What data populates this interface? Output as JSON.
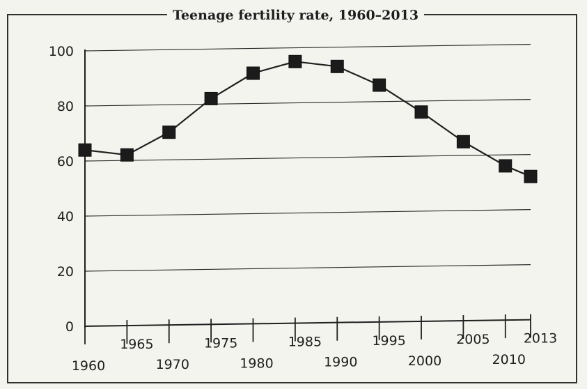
{
  "chart_data": {
    "type": "line",
    "title": "Teenage fertility rate, 1960–2013",
    "xlabel": "",
    "ylabel": "",
    "x": [
      1960,
      1965,
      1970,
      1975,
      1980,
      1985,
      1990,
      1995,
      2000,
      2005,
      2010,
      2013
    ],
    "x_tick_labels": [
      "1960",
      "1965",
      "1970",
      "1975",
      "1980",
      "1985",
      "1990",
      "1995",
      "2000",
      "2005",
      "2010",
      "2013"
    ],
    "series": [
      {
        "values": [
          64,
          62,
          70,
          82,
          91,
          95,
          93,
          86,
          76,
          65,
          56,
          52
        ]
      }
    ],
    "y_ticks": [
      "0",
      "20",
      "40",
      "60",
      "80",
      "100"
    ],
    "ylim": [
      0,
      100
    ],
    "grid": true,
    "legend": "none",
    "colors": {
      "line": "#1f1f1f",
      "marker": "#1b1b1b",
      "grid": "#2a2a2a",
      "frame": "#2f2f2f"
    }
  }
}
